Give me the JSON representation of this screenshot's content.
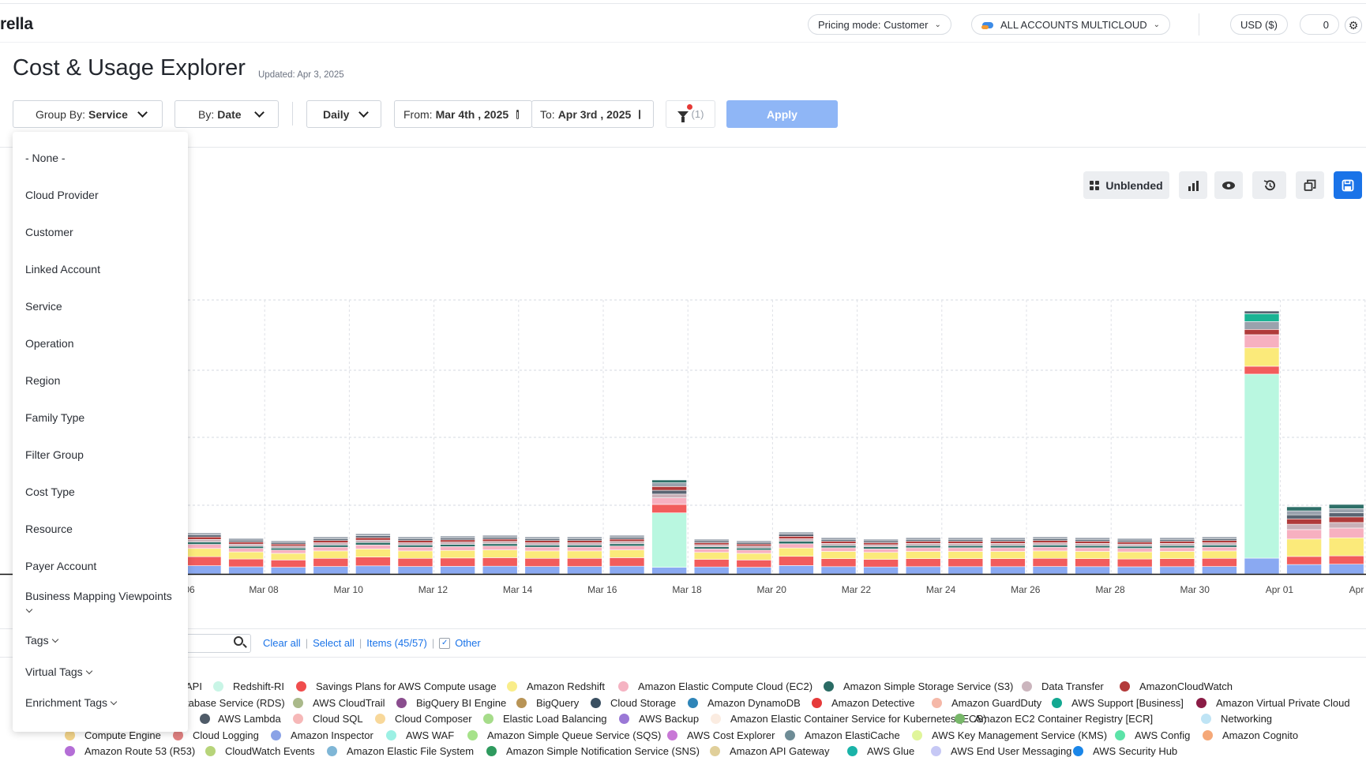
{
  "header": {
    "logo_text": "rella",
    "pricing_mode": "Pricing mode:  Customer",
    "accounts": "ALL ACCOUNTS MULTICLOUD",
    "currency": "USD ($)",
    "counter": "0"
  },
  "page": {
    "title": "Cost & Usage Explorer",
    "updated": "Updated: Apr 3, 2025"
  },
  "controls": {
    "group_by_label": "Group By:",
    "group_by_value": "Service",
    "by_label": "By:",
    "by_value": "Date",
    "granularity": "Daily",
    "from_label": "From:",
    "from_value": "Mar 4th , 2025",
    "to_label": "To:",
    "to_value": "Apr 3rd , 2025",
    "filter_count": "(1)",
    "apply_label": "Apply"
  },
  "toolbar": {
    "unblended_label": "Unblended"
  },
  "dropdown": {
    "items": [
      "- None -",
      "Cloud Provider",
      "Customer",
      "Linked Account",
      "Service",
      "Operation",
      "Region",
      "Family Type",
      "Filter Group",
      "Cost Type",
      "Resource",
      "Payer Account",
      "Business Mapping Viewpoints"
    ],
    "expandable": [
      "Tags",
      "Virtual Tags",
      "Enrichment Tags"
    ]
  },
  "legend_controls": {
    "clear_all": "Clear all",
    "select_all": "Select all",
    "items": "Items (45/57)",
    "other": "Other"
  },
  "chart_data": {
    "type": "bar",
    "stacked": true,
    "x_tick_labels": [
      "06",
      "Mar 08",
      "Mar 10",
      "Mar 12",
      "Mar 14",
      "Mar 16",
      "Mar 18",
      "Mar 20",
      "Mar 22",
      "Mar 24",
      "Mar 26",
      "Mar 28",
      "Mar 30",
      "Apr 01",
      "Apr"
    ],
    "categories": [
      "Mar 07",
      "Mar 08",
      "Mar 09",
      "Mar 10",
      "Mar 11",
      "Mar 12",
      "Mar 13",
      "Mar 14",
      "Mar 15",
      "Mar 16",
      "Mar 17",
      "Mar 18",
      "Mar 19",
      "Mar 20",
      "Mar 21",
      "Mar 22",
      "Mar 23",
      "Mar 24",
      "Mar 25",
      "Mar 26",
      "Mar 27",
      "Mar 28",
      "Mar 29",
      "Mar 30",
      "Mar 31",
      "Apr 01",
      "Apr 02",
      "Apr 03"
    ],
    "totals": [
      52,
      45,
      42,
      47,
      51,
      47,
      48,
      49,
      47,
      47,
      49,
      119,
      44,
      42,
      53,
      46,
      44,
      46,
      46,
      46,
      47,
      46,
      45,
      46,
      47,
      333,
      85,
      88
    ],
    "stack_colors": [
      "#8aa9f2",
      "#f25c5c",
      "#fbea7a",
      "#f7b0c0",
      "#2e6f68",
      "#c9b0b8",
      "#b03a3a",
      "#5a6472",
      "#9aa2ad"
    ],
    "spike_colors": {
      "mar17": "#b9f7e0",
      "apr01": "#b9f7e0",
      "apr01_top": "#1bb394"
    },
    "grid": true,
    "legend_placement": "bottom"
  },
  "legend": [
    [
      {
        "name": "API",
        "color": "#8aa9f2"
      },
      {
        "name": "Redshift-RI",
        "color": "#c9f5e6"
      },
      {
        "name": "Savings Plans for AWS Compute usage",
        "color": "#f04d4d"
      },
      {
        "name": "Amazon Redshift",
        "color": "#f9ed8a"
      },
      {
        "name": "Amazon Elastic Compute Cloud (EC2)",
        "color": "#f5b3c2"
      },
      {
        "name": "Amazon Simple Storage Service (S3)",
        "color": "#2a6b64"
      },
      {
        "name": "Data Transfer",
        "color": "#cbb5bd"
      },
      {
        "name": "AmazonCloudWatch",
        "color": "#b33a3a"
      }
    ],
    [
      {
        "name": "tabase Service (RDS)",
        "color": "#ffffff"
      },
      {
        "name": "AWS CloudTrail",
        "color": "#aab98a"
      },
      {
        "name": "BigQuery BI Engine",
        "color": "#8a4d8e"
      },
      {
        "name": "BigQuery",
        "color": "#b89456"
      },
      {
        "name": "Cloud Storage",
        "color": "#3a4f61"
      },
      {
        "name": "Amazon DynamoDB",
        "color": "#2f85b8"
      },
      {
        "name": "Amazon Detective",
        "color": "#e63a3a"
      },
      {
        "name": "Amazon GuardDuty",
        "color": "#f5b8a8"
      },
      {
        "name": "AWS Support [Business]",
        "color": "#13a891"
      },
      {
        "name": "Amazon Virtual Private Cloud",
        "color": "#8a1c45"
      }
    ],
    [
      {
        "name": "AWS Lambda",
        "color": "#4f5b68"
      },
      {
        "name": "Cloud SQL",
        "color": "#f6b8b8"
      },
      {
        "name": "Cloud Composer",
        "color": "#f8d89a"
      },
      {
        "name": "Elastic Load Balancing",
        "color": "#a6dc8a"
      },
      {
        "name": "AWS Backup",
        "color": "#9a78d6"
      },
      {
        "name": "Amazon Elastic Container Service for Kubernetes (ECS)",
        "color": "#fbece1"
      },
      {
        "name": "Amazon EC2 Container Registry [ECR]",
        "color": "#78b86a"
      },
      {
        "name": "Networking",
        "color": "#bfe4f5"
      }
    ],
    [
      {
        "name": "Compute Engine",
        "color": "#f1d38a"
      },
      {
        "name": "Cloud Logging",
        "color": "#e08080"
      },
      {
        "name": "Amazon Inspector",
        "color": "#8aa2e6"
      },
      {
        "name": "AWS WAF",
        "color": "#9cf0e4"
      },
      {
        "name": "Amazon Simple Queue Service (SQS)",
        "color": "#a6e28a"
      },
      {
        "name": "AWS Cost Explorer",
        "color": "#c878d6"
      },
      {
        "name": "Amazon ElastiCache",
        "color": "#6e8c96"
      },
      {
        "name": "AWS Key Management Service (KMS)",
        "color": "#e0f59a"
      },
      {
        "name": "AWS Config",
        "color": "#5ce3a8"
      },
      {
        "name": "Amazon Cognito",
        "color": "#f5a878"
      }
    ],
    [
      {
        "name": "Amazon Route 53 (R53)",
        "color": "#b46ed6"
      },
      {
        "name": "CloudWatch Events",
        "color": "#b7d47a"
      },
      {
        "name": "Amazon Elastic File System",
        "color": "#7fb6d6"
      },
      {
        "name": "Amazon Simple Notification Service (SNS)",
        "color": "#2e9a5e"
      },
      {
        "name": "Amazon API Gateway",
        "color": "#e0cf9a"
      },
      {
        "name": "AWS Glue",
        "color": "#1ab3a8"
      },
      {
        "name": "AWS End User Messaging",
        "color": "#c6c8f5"
      },
      {
        "name": "AWS Security Hub",
        "color": "#1a86e8"
      }
    ]
  ]
}
